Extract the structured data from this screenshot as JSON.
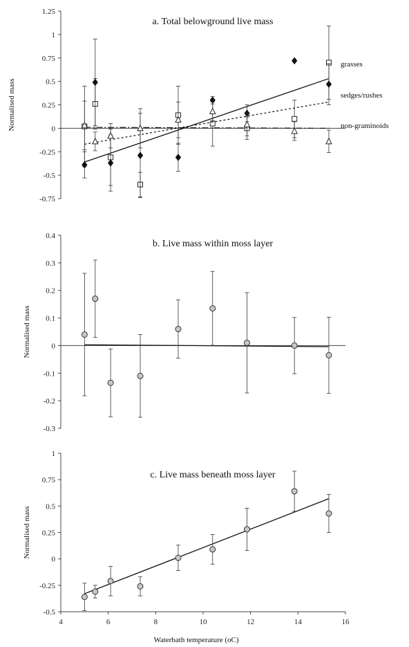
{
  "chart_data": [
    {
      "type": "scatter",
      "title": "a. Total belowground live mass",
      "ylabel": "Normalised mass",
      "xlabel": "",
      "xlim": [
        4,
        16
      ],
      "ylim": [
        -0.75,
        1.25
      ],
      "y_ticks": [
        "1.25",
        "1",
        "0.75",
        "0.5",
        "0.25",
        "0",
        "-0.25",
        "-0.5",
        "-0.75"
      ],
      "x_ticks": [],
      "legend_placement": "right",
      "series": [
        {
          "name": "grasses",
          "marker": "square-open",
          "x": [
            5.0,
            5.45,
            6.1,
            7.35,
            8.95,
            10.4,
            11.85,
            13.85,
            15.3
          ],
          "y": [
            0.02,
            0.26,
            -0.31,
            -0.6,
            0.14,
            0.05,
            0.0,
            0.1,
            0.7
          ],
          "err": [
            0.43,
            0.27,
            0.3,
            0.13,
            0.31,
            0.24,
            0.12,
            0.2,
            0.39
          ],
          "trend": {
            "style": "solid",
            "x": [
              5.0,
              15.3
            ],
            "y": [
              -0.36,
              0.53
            ]
          }
        },
        {
          "name": "sedges/rushes",
          "marker": "diamond-filled",
          "x": [
            5.0,
            5.45,
            6.1,
            7.35,
            8.95,
            10.4,
            11.85,
            13.85,
            15.3
          ],
          "y": [
            -0.39,
            0.49,
            -0.37,
            -0.29,
            -0.31,
            0.3,
            0.16,
            0.72,
            0.47
          ],
          "err": [
            0.14,
            0.46,
            0.3,
            0.45,
            0.15,
            0.04,
            0.09,
            0.0,
            0.22
          ],
          "trend": {
            "style": "dotted",
            "x": [
              5.0,
              15.3
            ],
            "y": [
              -0.17,
              0.28
            ]
          }
        },
        {
          "name": "non-graminoids",
          "marker": "triangle-open",
          "x": [
            5.0,
            5.45,
            6.1,
            7.35,
            8.95,
            10.4,
            11.85,
            13.85,
            15.3
          ],
          "y": [
            0.03,
            -0.14,
            -0.08,
            0.0,
            0.09,
            0.18,
            0.04,
            -0.03,
            -0.14
          ],
          "err": [
            0.26,
            0.1,
            0.13,
            0.21,
            0.19,
            0.1,
            0.12,
            0.1,
            0.12
          ],
          "trend": {
            "style": "dashdot",
            "x": [
              5.0,
              15.3
            ],
            "y": [
              0.01,
              0.0
            ]
          }
        }
      ]
    },
    {
      "type": "scatter",
      "title": "b. Live mass within moss layer",
      "ylabel": "Normalised mass",
      "xlabel": "",
      "xlim": [
        4,
        16
      ],
      "ylim": [
        -0.3,
        0.4
      ],
      "y_ticks": [
        "0.4",
        "0.3",
        "0.2",
        "0.1",
        "0",
        "-0.1",
        "-0.2",
        "-0.3"
      ],
      "x_ticks": [],
      "series": [
        {
          "marker": "circle-gray",
          "x": [
            5.0,
            5.45,
            6.1,
            7.35,
            8.95,
            10.4,
            11.85,
            13.85,
            15.3
          ],
          "y": [
            0.04,
            0.17,
            -0.135,
            -0.11,
            0.06,
            0.135,
            0.01,
            0.0,
            -0.035
          ],
          "err": [
            0.222,
            0.14,
            0.123,
            0.15,
            0.106,
            0.134,
            0.182,
            0.102,
            0.138
          ],
          "trend": {
            "style": "solid",
            "x": [
              5.0,
              15.3
            ],
            "y": [
              0.003,
              -0.004
            ]
          }
        }
      ]
    },
    {
      "type": "scatter",
      "title": "c. Live mass beneath moss layer",
      "ylabel": "Normalised mass",
      "xlabel": "Waterbath temperature (oC)",
      "xlim": [
        4,
        16
      ],
      "ylim": [
        -0.5,
        1.0
      ],
      "y_ticks": [
        "1",
        "0.75",
        "0.5",
        "0.25",
        "0",
        "-0.25",
        "-0.5"
      ],
      "x_ticks": [
        "4",
        "6",
        "8",
        "10",
        "12",
        "14",
        "16"
      ],
      "series": [
        {
          "marker": "circle-gray",
          "x": [
            5.0,
            5.45,
            6.1,
            7.35,
            8.95,
            10.4,
            11.85,
            13.85,
            15.3
          ],
          "y": [
            -0.36,
            -0.31,
            -0.21,
            -0.26,
            0.01,
            0.09,
            0.28,
            0.64,
            0.43
          ],
          "err": [
            0.13,
            0.06,
            0.14,
            0.09,
            0.12,
            0.14,
            0.2,
            0.19,
            0.18
          ],
          "trend": {
            "style": "solid",
            "x": [
              5.0,
              15.3
            ],
            "y": [
              -0.33,
              0.57
            ]
          }
        }
      ]
    }
  ]
}
